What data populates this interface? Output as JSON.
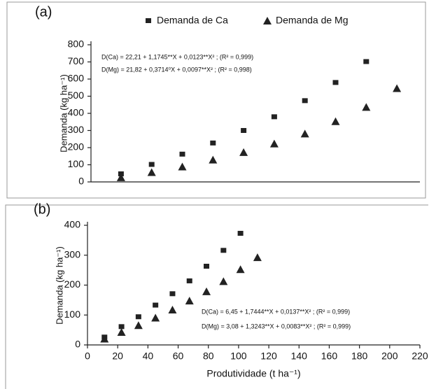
{
  "chart_data": [
    {
      "type": "scatter",
      "label": "(a)",
      "y_label": "Demanda (kg ha⁻¹)",
      "categories": [
        null,
        null,
        null,
        null,
        null,
        null,
        null,
        null,
        null,
        null
      ],
      "series": [
        {
          "name": "Demanda de Ca",
          "marker": "square",
          "color": "#222222",
          "values": [
            45,
            100,
            160,
            225,
            298,
            378,
            472,
            578,
            700,
            null
          ]
        },
        {
          "name": "Demanda de Mg",
          "marker": "triangle",
          "color": "#222222",
          "values": [
            25,
            55,
            88,
            128,
            172,
            222,
            280,
            352,
            435,
            545
          ]
        }
      ],
      "ylim": [
        0,
        800
      ],
      "yticks": [
        0,
        100,
        200,
        300,
        400,
        500,
        600,
        700,
        800
      ],
      "annotations": [
        "D(Ca) = 22,21 + 1,1745**X + 0,0123**X² ; (R² = 0,999)",
        "D(Mg) = 21,82 + 0,3714⁰X + 0,0097**X² ; (R² = 0,998)"
      ]
    },
    {
      "type": "scatter",
      "label": "(b)",
      "y_label": "Demanda (kg ha⁻¹)",
      "x_label": "Produtividade (t  ha⁻¹)",
      "series": [
        {
          "marker": "square",
          "color": "#222222",
          "x": [
            11.25,
            22.5,
            33.75,
            45,
            56.25,
            67.5,
            78.75,
            90,
            101.25
          ],
          "values": [
            25,
            60,
            93,
            132,
            170,
            213,
            262,
            315,
            372
          ]
        },
        {
          "marker": "triangle",
          "color": "#222222",
          "x": [
            11.25,
            22.5,
            33.75,
            45,
            56.25,
            67.5,
            78.75,
            90,
            101.25,
            112.5
          ],
          "values": [
            20,
            42,
            65,
            90,
            117,
            147,
            178,
            212,
            252,
            292
          ]
        }
      ],
      "xlim": [
        0,
        220
      ],
      "xticks": [
        0,
        20,
        40,
        60,
        80,
        100,
        120,
        140,
        160,
        180,
        200,
        220
      ],
      "ylim": [
        0,
        400
      ],
      "yticks": [
        0,
        100,
        200,
        300,
        400
      ],
      "annotations": [
        "D(Ca) = 6,45 + 1,7444**X + 0,0137**X² ; (R² = 0,999)",
        "D(Mg) = 3,08 + 1,3243**X + 0,0083**X² ; (R² = 0,999)"
      ]
    }
  ]
}
